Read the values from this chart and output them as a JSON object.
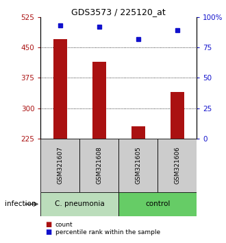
{
  "title": "GDS3573 / 225120_at",
  "samples": [
    "GSM321607",
    "GSM321608",
    "GSM321605",
    "GSM321606"
  ],
  "counts": [
    470,
    415,
    255,
    340
  ],
  "percentiles": [
    93,
    92,
    82,
    89
  ],
  "ylim_left": [
    225,
    525
  ],
  "ylim_right": [
    0,
    100
  ],
  "yticks_left": [
    225,
    300,
    375,
    450,
    525
  ],
  "yticks_right": [
    0,
    25,
    50,
    75,
    100
  ],
  "bar_color": "#aa1111",
  "dot_color": "#1111cc",
  "bar_width": 0.35,
  "group_labels": [
    "C. pneumonia",
    "control"
  ],
  "group_colors": [
    "#bbddbb",
    "#66cc66"
  ],
  "sample_box_color": "#cccccc",
  "group_label": "infection",
  "legend_count": "count",
  "legend_percentile": "percentile rank within the sample"
}
